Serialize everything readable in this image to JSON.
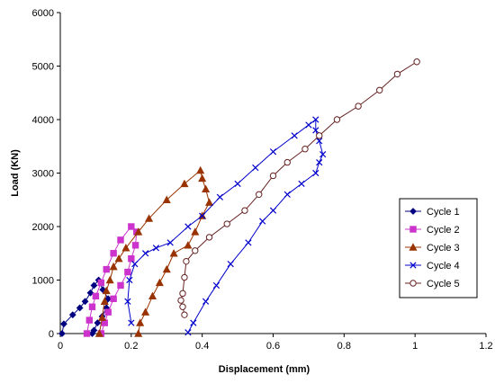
{
  "chart_data": {
    "type": "line",
    "title": "",
    "xlabel": "Displacement (mm)",
    "ylabel": "Load (KN)",
    "xlim": [
      0,
      1.2
    ],
    "ylim": [
      0,
      6000
    ],
    "x_ticks": [
      "0",
      "0.2",
      "0.4",
      "0.6",
      "0.8",
      "1",
      "1.2"
    ],
    "y_ticks": [
      "0",
      "1000",
      "2000",
      "3000",
      "4000",
      "5000",
      "6000"
    ],
    "grid": false,
    "legend_position": "right",
    "series": [
      {
        "name": "Cycle 1",
        "color": "#000080",
        "marker": "diamond",
        "points": [
          [
            0.005,
            0
          ],
          [
            0.01,
            180
          ],
          [
            0.035,
            350
          ],
          [
            0.055,
            480
          ],
          [
            0.07,
            600
          ],
          [
            0.085,
            760
          ],
          [
            0.095,
            900
          ],
          [
            0.108,
            1000
          ],
          [
            0.12,
            820
          ],
          [
            0.135,
            650
          ],
          [
            0.13,
            480
          ],
          [
            0.118,
            320
          ],
          [
            0.105,
            200
          ],
          [
            0.095,
            60
          ],
          [
            0.09,
            0
          ]
        ]
      },
      {
        "name": "Cycle 2",
        "color": "#cc33cc",
        "marker": "square",
        "points": [
          [
            0.075,
            0
          ],
          [
            0.082,
            250
          ],
          [
            0.09,
            500
          ],
          [
            0.1,
            700
          ],
          [
            0.115,
            950
          ],
          [
            0.13,
            1200
          ],
          [
            0.15,
            1500
          ],
          [
            0.17,
            1750
          ],
          [
            0.2,
            2000
          ],
          [
            0.215,
            1900
          ],
          [
            0.212,
            1650
          ],
          [
            0.2,
            1400
          ],
          [
            0.19,
            1150
          ],
          [
            0.17,
            900
          ],
          [
            0.15,
            650
          ],
          [
            0.135,
            400
          ],
          [
            0.125,
            200
          ],
          [
            0.115,
            0
          ]
        ]
      },
      {
        "name": "Cycle 3",
        "color": "#993300",
        "marker": "triangle",
        "points": [
          [
            0.11,
            0
          ],
          [
            0.118,
            300
          ],
          [
            0.125,
            600
          ],
          [
            0.13,
            800
          ],
          [
            0.14,
            1000
          ],
          [
            0.15,
            1250
          ],
          [
            0.165,
            1400
          ],
          [
            0.185,
            1600
          ],
          [
            0.22,
            1900
          ],
          [
            0.25,
            2150
          ],
          [
            0.3,
            2500
          ],
          [
            0.35,
            2800
          ],
          [
            0.395,
            3050
          ],
          [
            0.4,
            2900
          ],
          [
            0.41,
            2700
          ],
          [
            0.42,
            2450
          ],
          [
            0.4,
            2200
          ],
          [
            0.38,
            1900
          ],
          [
            0.36,
            1650
          ],
          [
            0.32,
            1500
          ],
          [
            0.3,
            1200
          ],
          [
            0.28,
            950
          ],
          [
            0.26,
            700
          ],
          [
            0.24,
            400
          ],
          [
            0.225,
            200
          ],
          [
            0.22,
            0
          ]
        ]
      },
      {
        "name": "Cycle 4",
        "color": "#0000cc",
        "marker": "x",
        "points": [
          [
            0.2,
            200
          ],
          [
            0.19,
            600
          ],
          [
            0.195,
            1000
          ],
          [
            0.21,
            1300
          ],
          [
            0.24,
            1500
          ],
          [
            0.27,
            1600
          ],
          [
            0.31,
            1700
          ],
          [
            0.36,
            2000
          ],
          [
            0.4,
            2200
          ],
          [
            0.45,
            2550
          ],
          [
            0.5,
            2800
          ],
          [
            0.55,
            3100
          ],
          [
            0.6,
            3400
          ],
          [
            0.66,
            3700
          ],
          [
            0.7,
            3900
          ],
          [
            0.72,
            4000
          ],
          [
            0.72,
            3800
          ],
          [
            0.73,
            3600
          ],
          [
            0.74,
            3350
          ],
          [
            0.73,
            3200
          ],
          [
            0.72,
            3000
          ],
          [
            0.68,
            2800
          ],
          [
            0.64,
            2600
          ],
          [
            0.6,
            2300
          ],
          [
            0.57,
            2100
          ],
          [
            0.53,
            1700
          ],
          [
            0.48,
            1300
          ],
          [
            0.44,
            900
          ],
          [
            0.41,
            600
          ],
          [
            0.375,
            200
          ],
          [
            0.36,
            20
          ]
        ]
      },
      {
        "name": "Cycle 5",
        "color": "#662222",
        "marker": "circle",
        "points": [
          [
            0.35,
            350
          ],
          [
            0.345,
            500
          ],
          [
            0.34,
            620
          ],
          [
            0.345,
            750
          ],
          [
            0.35,
            1050
          ],
          [
            0.355,
            1350
          ],
          [
            0.38,
            1550
          ],
          [
            0.42,
            1800
          ],
          [
            0.47,
            2050
          ],
          [
            0.52,
            2300
          ],
          [
            0.56,
            2600
          ],
          [
            0.6,
            2950
          ],
          [
            0.64,
            3200
          ],
          [
            0.69,
            3450
          ],
          [
            0.73,
            3700
          ],
          [
            0.78,
            4000
          ],
          [
            0.84,
            4250
          ],
          [
            0.9,
            4550
          ],
          [
            0.95,
            4850
          ],
          [
            1.005,
            5080
          ]
        ]
      }
    ]
  }
}
